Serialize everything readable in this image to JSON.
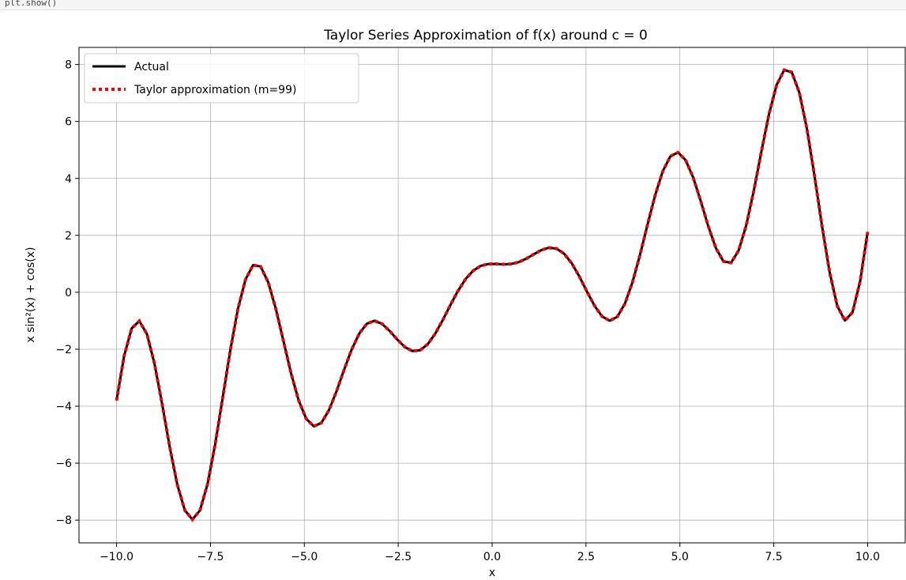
{
  "cell": {
    "code_text": "plt.show()"
  },
  "chart_data": {
    "type": "line",
    "title": "Taylor Series Approximation of f(x) around c = 0",
    "xlabel": "x",
    "ylabel": "x sin²(x) + cos(x)",
    "xlim": [
      -11.0,
      11.0
    ],
    "ylim": [
      -8.8,
      8.6
    ],
    "xticks": [
      -10.0,
      -7.5,
      -5.0,
      -2.5,
      0.0,
      2.5,
      5.0,
      7.5,
      10.0
    ],
    "xtick_labels": [
      "−10.0",
      "−7.5",
      "−5.0",
      "−2.5",
      "0.0",
      "2.5",
      "5.0",
      "7.5",
      "10.0"
    ],
    "yticks": [
      -8,
      -6,
      -4,
      -2,
      0,
      2,
      4,
      6,
      8
    ],
    "ytick_labels": [
      "−8",
      "−6",
      "−4",
      "−2",
      "0",
      "2",
      "4",
      "6",
      "8"
    ],
    "grid": true,
    "legend_position": "top-left",
    "function": "x*sin(x)^2 + cos(x)",
    "x_range": [
      -10,
      10
    ],
    "sample_points": 100,
    "series": [
      {
        "name": "Actual",
        "style": "solid",
        "color": "#000000"
      },
      {
        "name": "Taylor approximation (m=99)",
        "style": "dotted",
        "color": "#ff0000"
      }
    ]
  }
}
